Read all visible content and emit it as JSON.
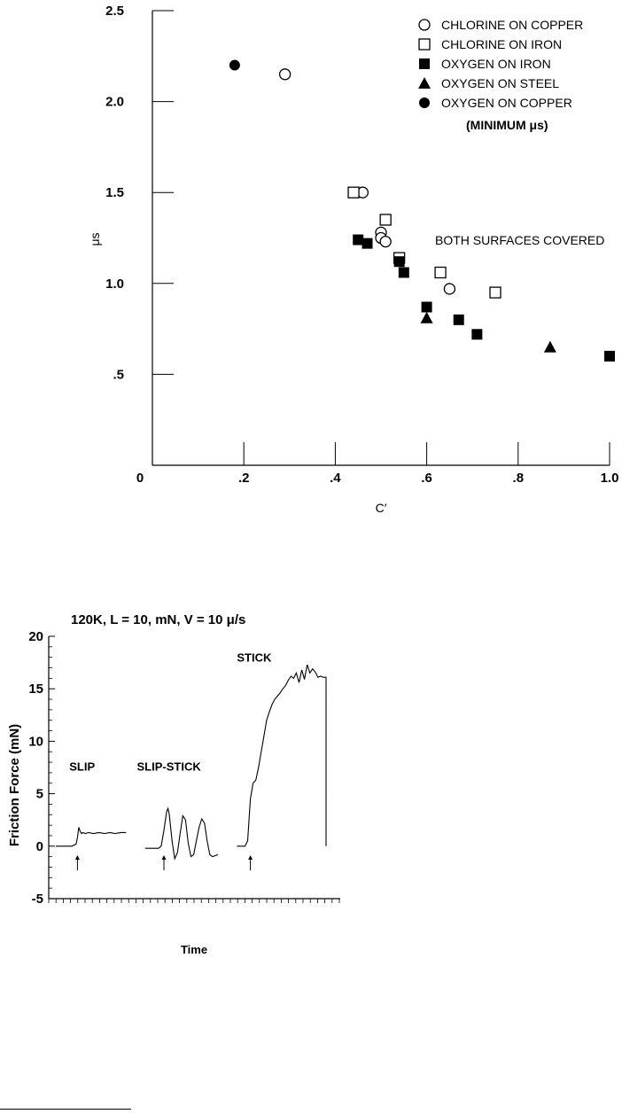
{
  "chart_data": [
    {
      "type": "scatter",
      "title": "",
      "xlabel": "C′",
      "ylabel": "μs",
      "xlim": [
        0,
        1.0
      ],
      "ylim": [
        0,
        2.5
      ],
      "x_ticks": [
        0,
        0.2,
        0.4,
        0.6,
        0.8,
        1.0
      ],
      "x_tick_labels": [
        "0",
        ".2",
        ".4",
        ".6",
        ".8",
        "1.0"
      ],
      "y_ticks": [
        0.5,
        1.0,
        1.5,
        2.0,
        2.5
      ],
      "y_tick_labels": [
        ".5",
        "1.0",
        "1.5",
        "2.0",
        "2.5"
      ],
      "grid": false,
      "legend_position": "top-right",
      "legend_note": "(MINIMUM μs)",
      "annotation": "BOTH SURFACES COVERED",
      "series": [
        {
          "name": "CHLORINE ON COPPER",
          "marker": "circle-open",
          "points": [
            [
              0.29,
              2.15
            ],
            [
              0.46,
              1.5
            ],
            [
              0.5,
              1.28
            ],
            [
              0.5,
              1.25
            ],
            [
              0.51,
              1.23
            ],
            [
              0.65,
              0.97
            ]
          ]
        },
        {
          "name": "CHLORINE ON IRON",
          "marker": "square-open",
          "points": [
            [
              0.44,
              1.5
            ],
            [
              0.51,
              1.35
            ],
            [
              0.54,
              1.14
            ],
            [
              0.63,
              1.06
            ],
            [
              0.75,
              0.95
            ]
          ]
        },
        {
          "name": "OXYGEN ON IRON",
          "marker": "square-filled",
          "points": [
            [
              0.45,
              1.24
            ],
            [
              0.47,
              1.22
            ],
            [
              0.54,
              1.12
            ],
            [
              0.55,
              1.06
            ],
            [
              0.6,
              0.87
            ],
            [
              0.67,
              0.8
            ],
            [
              0.71,
              0.72
            ],
            [
              1.0,
              0.6
            ]
          ]
        },
        {
          "name": "OXYGEN ON STEEL",
          "marker": "triangle-filled",
          "points": [
            [
              0.6,
              0.81
            ],
            [
              0.87,
              0.65
            ]
          ]
        },
        {
          "name": "OXYGEN ON COPPER",
          "marker": "circle-filled",
          "points": [
            [
              0.18,
              2.2
            ]
          ]
        }
      ]
    },
    {
      "type": "line",
      "title": "120K, L = 10, mN, V = 10 μ/s",
      "xlabel": "Time",
      "ylabel": "Friction Force (mN)",
      "ylim": [
        -5,
        20
      ],
      "y_ticks": [
        -5,
        0,
        5,
        10,
        15,
        20
      ],
      "y_tick_labels": [
        "-5",
        "0",
        "5",
        "10",
        "15",
        "20"
      ],
      "grid": false,
      "annotations": [
        "SLIP",
        "SLIP-STICK",
        "STICK"
      ],
      "series": [
        {
          "name": "SLIP",
          "x": [
            0,
            0.06,
            0.075,
            0.08,
            0.085,
            0.09,
            0.095,
            0.1,
            0.11,
            0.12,
            0.14,
            0.16,
            0.18,
            0.2,
            0.22,
            0.24,
            0.26
          ],
          "y": [
            0,
            0,
            0.2,
            0.8,
            1.8,
            1.4,
            1.2,
            1.3,
            1.2,
            1.3,
            1.2,
            1.3,
            1.2,
            1.3,
            1.2,
            1.3,
            1.3
          ]
        },
        {
          "name": "SLIP-STICK",
          "x": [
            0.33,
            0.38,
            0.39,
            0.4,
            0.41,
            0.415,
            0.42,
            0.43,
            0.44,
            0.45,
            0.46,
            0.47,
            0.48,
            0.49,
            0.5,
            0.51,
            0.52,
            0.53,
            0.54,
            0.55,
            0.56,
            0.57,
            0.58,
            0.59,
            0.6
          ],
          "y": [
            -0.2,
            -0.2,
            0,
            1.5,
            3.3,
            3.6,
            3.0,
            0.5,
            -1.2,
            -0.6,
            1.2,
            2.9,
            2.5,
            0.3,
            -1.0,
            -0.8,
            0.5,
            1.8,
            2.6,
            2.2,
            0.5,
            -0.8,
            -1.0,
            -0.9,
            -0.8
          ]
        },
        {
          "name": "STICK",
          "x": [
            0.67,
            0.7,
            0.71,
            0.72,
            0.73,
            0.74,
            0.75,
            0.76,
            0.77,
            0.78,
            0.79,
            0.8,
            0.81,
            0.82,
            0.83,
            0.84,
            0.85,
            0.86,
            0.87,
            0.88,
            0.89,
            0.9,
            0.91,
            0.92,
            0.93,
            0.94,
            0.95,
            0.96,
            0.97,
            0.98,
            0.99,
            1.0,
            1.0
          ],
          "y": [
            0,
            0,
            0.5,
            4.5,
            6.0,
            6.3,
            7.5,
            9.0,
            10.5,
            12.0,
            12.8,
            13.5,
            14.0,
            14.3,
            14.6,
            15.0,
            15.3,
            15.8,
            16.2,
            16.0,
            16.5,
            15.6,
            16.8,
            15.9,
            17.3,
            16.5,
            16.9,
            16.6,
            16.1,
            16.2,
            16.1,
            16.1,
            0
          ]
        }
      ],
      "arrows_at": [
        0.08,
        0.4,
        0.72
      ]
    }
  ]
}
